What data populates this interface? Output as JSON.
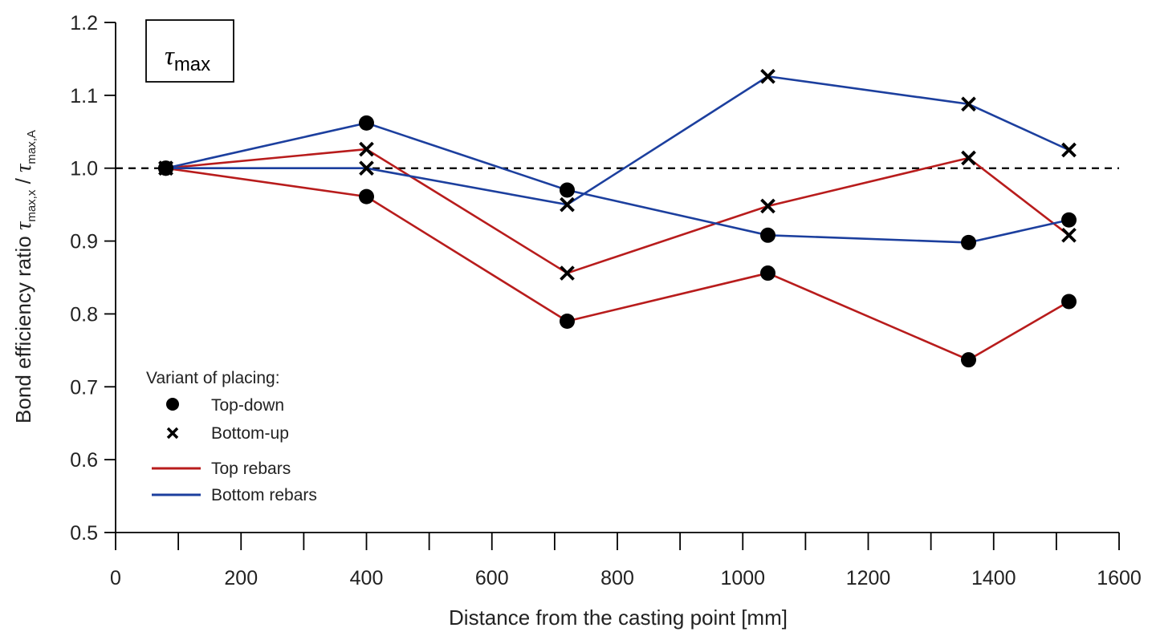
{
  "chart_data": {
    "type": "line",
    "title": "τmax",
    "title_symbol": "τ",
    "title_subscript": "max",
    "xlabel": "Distance from the casting point [mm]",
    "ylabel": {
      "prefix": "Bond efficiency ratio ",
      "num_symbol": "τ",
      "num_sub": "max,x",
      "sep": " / ",
      "den_symbol": "τ",
      "den_sub": "max,A"
    },
    "xlim": [
      0,
      1600
    ],
    "ylim": [
      0.5,
      1.2
    ],
    "x_ticks": [
      0,
      200,
      400,
      600,
      800,
      1000,
      1200,
      1400,
      1600
    ],
    "x_tick_labels": [
      "0",
      "200",
      "400",
      "600",
      "800",
      "1000",
      "1200",
      "1400",
      "1600"
    ],
    "x_minor_ticks": [
      100,
      300,
      500,
      700,
      900,
      1100,
      1300,
      1500
    ],
    "y_ticks": [
      0.5,
      0.6,
      0.7,
      0.8,
      0.9,
      1.0,
      1.1,
      1.2
    ],
    "y_tick_labels": [
      "0.5",
      "0.6",
      "0.7",
      "0.8",
      "0.9",
      "1.0",
      "1.1",
      "1.2"
    ],
    "reference_line": {
      "y": 1.0,
      "style": "dashed",
      "color": "#000000"
    },
    "series": [
      {
        "name": "Top rebars, Top-down",
        "color": "#b81c1c",
        "marker": "circle",
        "x": [
          80,
          400,
          720,
          1040,
          1360,
          1520
        ],
        "values": [
          1.0,
          0.961,
          0.79,
          0.856,
          0.737,
          0.817
        ]
      },
      {
        "name": "Top rebars, Bottom-up",
        "color": "#b81c1c",
        "marker": "cross",
        "x": [
          80,
          400,
          720,
          1040,
          1360,
          1520
        ],
        "values": [
          1.0,
          1.026,
          0.856,
          0.948,
          1.014,
          0.908
        ]
      },
      {
        "name": "Bottom rebars, Top-down",
        "color": "#1c3f9e",
        "marker": "circle",
        "x": [
          80,
          400,
          720,
          1040,
          1360,
          1520
        ],
        "values": [
          1.0,
          1.062,
          0.97,
          0.908,
          0.898,
          0.929
        ]
      },
      {
        "name": "Bottom rebars, Bottom-up",
        "color": "#1c3f9e",
        "marker": "cross",
        "x": [
          80,
          400,
          720,
          1040,
          1360,
          1520
        ],
        "values": [
          1.0,
          1.0,
          0.95,
          1.126,
          1.088,
          1.025
        ]
      }
    ],
    "legend": {
      "title": "Variant of placing:",
      "placement": "bottom-left",
      "items": [
        {
          "label": "Top-down",
          "kind": "marker",
          "marker": "circle",
          "color": "#000000"
        },
        {
          "label": "Bottom-up",
          "kind": "marker",
          "marker": "cross",
          "color": "#000000"
        },
        {
          "label": "Top rebars",
          "kind": "line",
          "color": "#b81c1c"
        },
        {
          "label": "Bottom rebars",
          "kind": "line",
          "color": "#1c3f9e"
        }
      ]
    }
  }
}
